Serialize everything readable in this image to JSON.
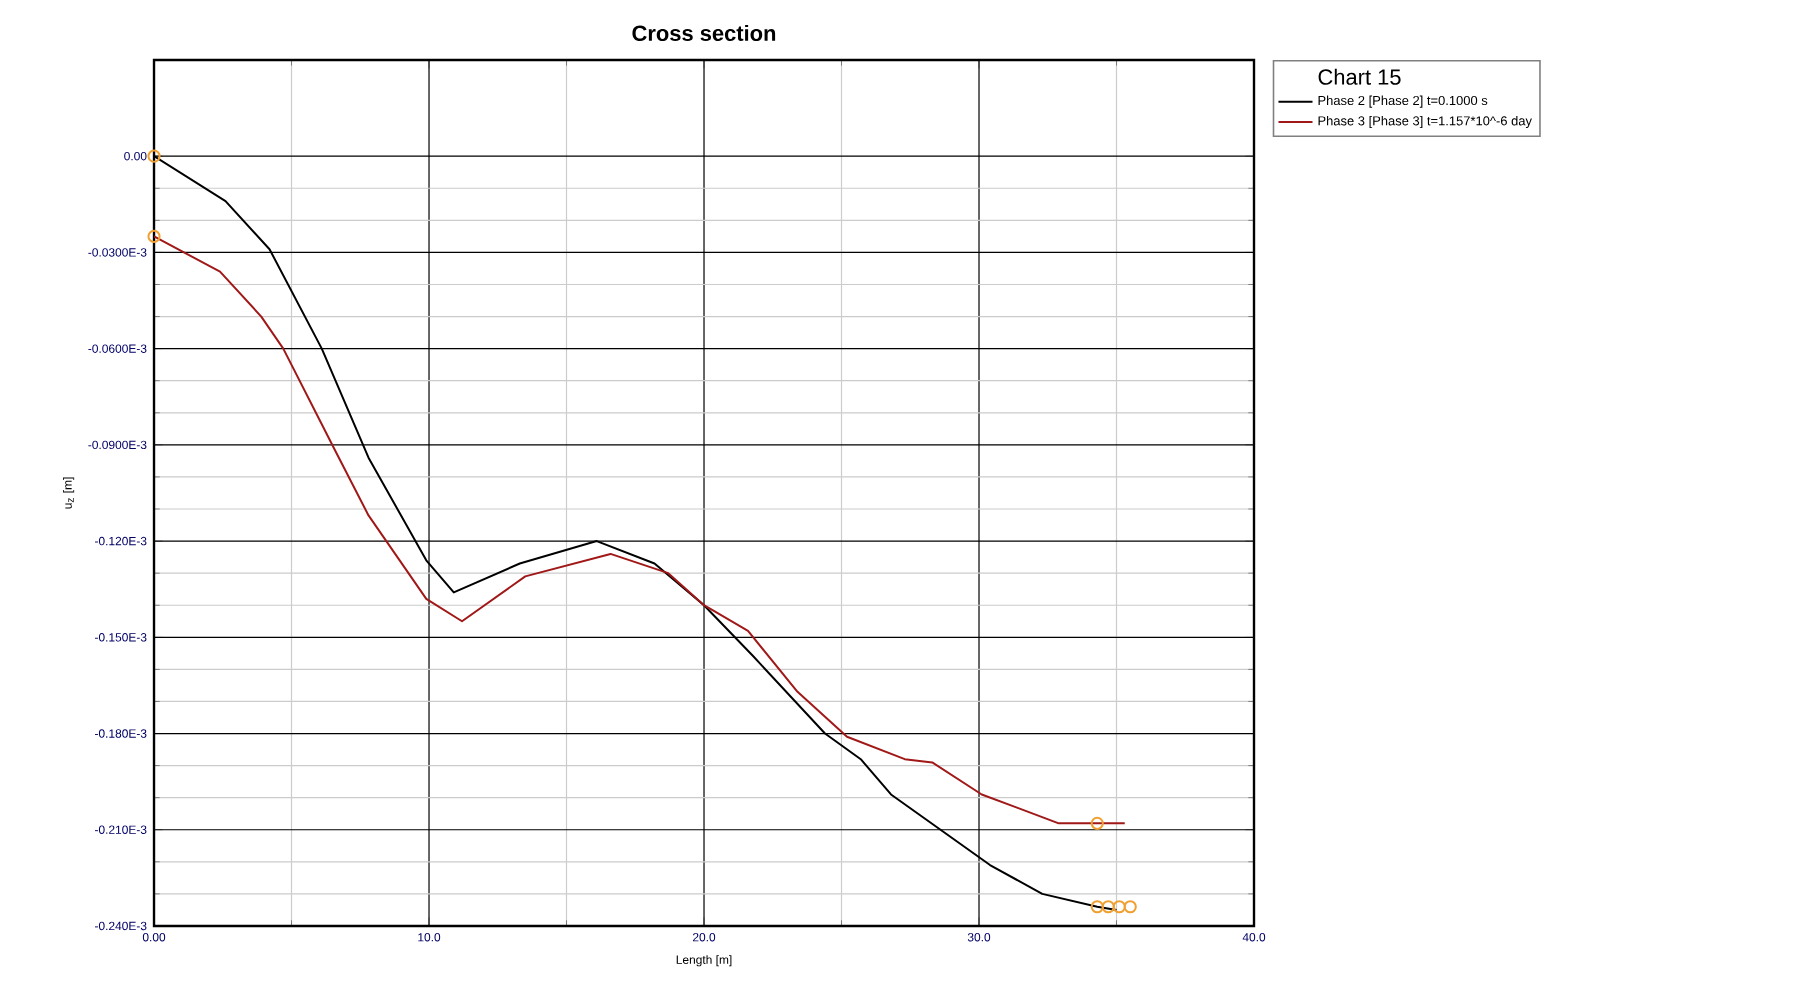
{
  "chart_data": {
    "type": "line",
    "title": "Cross section",
    "xlabel": "Length [m]",
    "ylabel": "u$_{z}$ [m]",
    "legend_title": "Chart 15",
    "xlim": [
      0,
      40
    ],
    "ylim": [
      -0.00024,
      3e-05
    ],
    "xticks": [
      {
        "value": 0,
        "label": "0.00"
      },
      {
        "value": 10,
        "label": "10.0"
      },
      {
        "value": 20,
        "label": "20.0"
      },
      {
        "value": 30,
        "label": "30.0"
      },
      {
        "value": 40,
        "label": "40.0"
      }
    ],
    "yticks": [
      {
        "value": 0,
        "label": "0.00"
      },
      {
        "value": -3e-05,
        "label": "-0.0300E-3"
      },
      {
        "value": -6e-05,
        "label": "-0.0600E-3"
      },
      {
        "value": -9e-05,
        "label": "-0.0900E-3"
      },
      {
        "value": -0.00012,
        "label": "-0.120E-3"
      },
      {
        "value": -0.00015,
        "label": "-0.150E-3"
      },
      {
        "value": -0.00018,
        "label": "-0.180E-3"
      },
      {
        "value": -0.00021,
        "label": "-0.210E-3"
      },
      {
        "value": -0.00024,
        "label": "-0.240E-3"
      }
    ],
    "grid": true,
    "legend": "right",
    "line_style": "solid",
    "series": [
      {
        "name": "Phase 2 [Phase 2] t=0.1000 s",
        "color": "#000000",
        "x": [
          0,
          2.6,
          4.2,
          6.1,
          7.8,
          9.9,
          10.9,
          13.3,
          16.1,
          18.2,
          20.0,
          21.8,
          24.4,
          25.7,
          26.8,
          30.4,
          32.3,
          34.3,
          35.0
        ],
        "values": [
          0,
          -1.4e-05,
          -2.9e-05,
          -6e-05,
          -9.4e-05,
          -0.000126,
          -0.000136,
          -0.000127,
          -0.00012,
          -0.000127,
          -0.00014,
          -0.000156,
          -0.00018,
          -0.000188,
          -0.000199,
          -0.000221,
          -0.00023,
          -0.000234,
          -0.000235
        ]
      },
      {
        "name": "Phase 3 [Phase 3] t=1.157*10^-6 day",
        "color": "#a01818",
        "x": [
          0,
          2.4,
          3.9,
          4.7,
          6.6,
          7.8,
          9.9,
          11.2,
          13.5,
          16.6,
          18.7,
          20.0,
          21.6,
          23.4,
          25.2,
          27.3,
          28.3,
          30.1,
          32.9,
          34.3,
          35.3
        ],
        "values": [
          -2.5e-05,
          -3.6e-05,
          -5e-05,
          -6e-05,
          -9.2e-05,
          -0.000112,
          -0.000138,
          -0.000145,
          -0.000131,
          -0.000124,
          -0.00013,
          -0.00014,
          -0.000148,
          -0.000167,
          -0.000181,
          -0.000188,
          -0.000189,
          -0.000199,
          -0.000208,
          -0.000208,
          -0.000208
        ]
      },
      {
        "type": "scatter",
        "color": "#f0a030",
        "marker": "circle",
        "x": [
          0,
          0,
          34.3,
          34.3,
          34.7,
          35.1,
          35.5
        ],
        "values": [
          0,
          -2.5e-05,
          -0.000208,
          -0.000234,
          -0.000234,
          -0.000234,
          -0.000234
        ]
      }
    ]
  }
}
